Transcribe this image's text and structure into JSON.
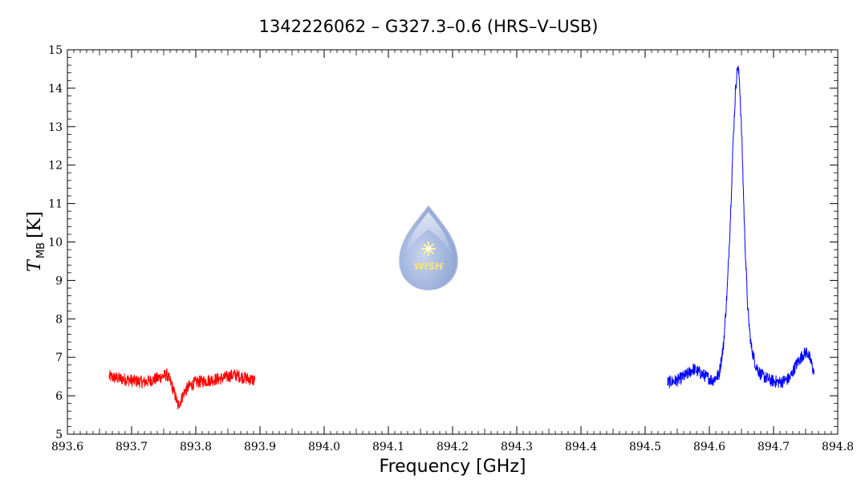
{
  "chart_data": {
    "type": "line",
    "title": "1342226062 – G327.3–0.6 (HRS–V–USB)",
    "xlabel": "Frequency [GHz]",
    "ylabel": {
      "main": "T",
      "subscript": "MB",
      "unit": "[K]"
    },
    "xlim": [
      893.6,
      894.8
    ],
    "ylim": [
      5,
      15
    ],
    "xticks": [
      "893.6",
      "893.7",
      "893.8",
      "893.9",
      "894.0",
      "894.1",
      "894.2",
      "894.3",
      "894.4",
      "894.5",
      "894.6",
      "894.7",
      "894.8"
    ],
    "yticks": [
      "5",
      "6",
      "7",
      "8",
      "9",
      "10",
      "11",
      "12",
      "13",
      "14",
      "15"
    ],
    "grid": false,
    "series": [
      {
        "color": "#ff0000",
        "x": [
          893.665,
          893.68,
          893.7,
          893.72,
          893.74,
          893.755,
          893.762,
          893.768,
          893.772,
          893.776,
          893.782,
          893.79,
          893.8,
          893.82,
          893.84,
          893.86,
          893.87,
          893.88,
          893.892
        ],
        "y": [
          6.5,
          6.45,
          6.4,
          6.35,
          6.45,
          6.55,
          6.3,
          6.0,
          5.75,
          5.85,
          6.1,
          6.25,
          6.35,
          6.4,
          6.45,
          6.55,
          6.5,
          6.45,
          6.4
        ]
      },
      {
        "color": "#0000ff",
        "x": [
          894.535,
          894.55,
          894.565,
          894.575,
          894.59,
          894.605,
          894.615,
          894.622,
          894.628,
          894.633,
          894.637,
          894.641,
          894.644,
          894.647,
          894.651,
          894.655,
          894.66,
          894.665,
          894.672,
          894.68,
          894.695,
          894.71,
          894.725,
          894.735,
          894.745,
          894.752,
          894.758,
          894.763
        ],
        "y": [
          6.35,
          6.4,
          6.55,
          6.7,
          6.55,
          6.4,
          6.55,
          7.3,
          8.8,
          10.7,
          12.6,
          14.0,
          14.6,
          14.2,
          12.5,
          10.2,
          8.2,
          7.3,
          6.8,
          6.55,
          6.4,
          6.35,
          6.45,
          6.8,
          7.05,
          7.15,
          6.9,
          6.6
        ]
      }
    ],
    "logo_text": "WISH"
  }
}
